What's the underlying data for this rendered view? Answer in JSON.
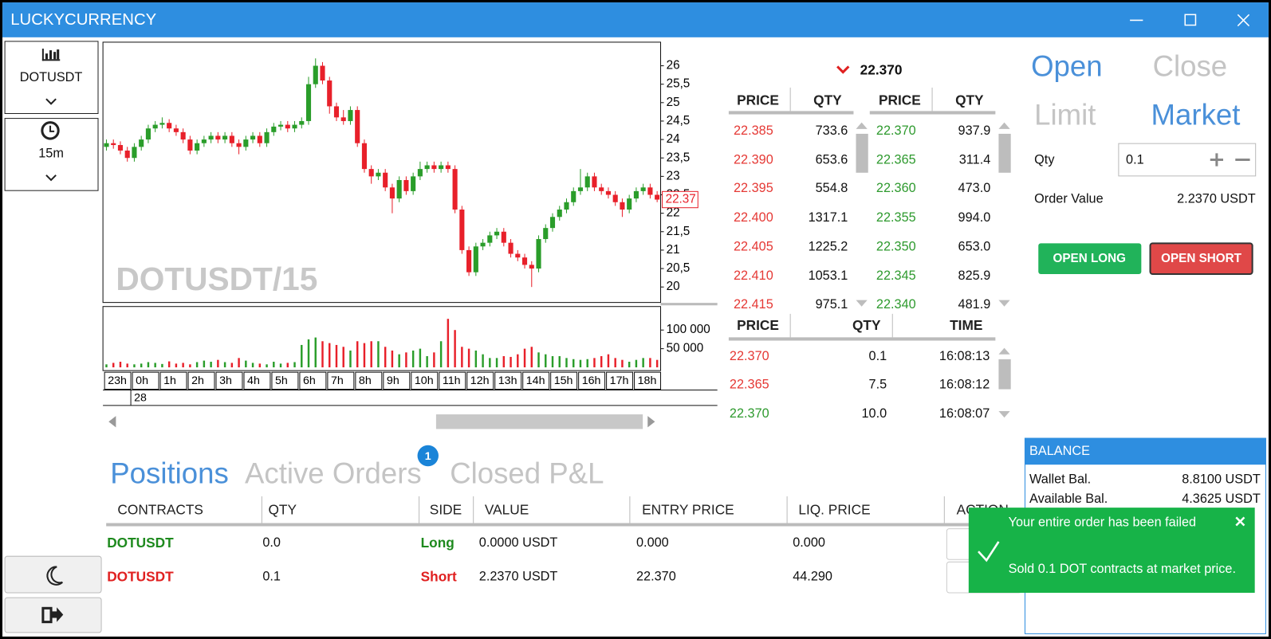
{
  "window": {
    "title": "LUCKYCURRENCY"
  },
  "sidebar": {
    "symbol": "DOTUSDT",
    "interval": "15m"
  },
  "chart_data": {
    "type": "candlestick",
    "watermark": "DOTUSDT/15",
    "x_labels": [
      "23h",
      "0h",
      "1h",
      "2h",
      "3h",
      "4h",
      "5h",
      "6h",
      "7h",
      "8h",
      "9h",
      "10h",
      "11h",
      "12h",
      "13h",
      "14h",
      "15h",
      "16h",
      "17h",
      "18h"
    ],
    "date_label": "28",
    "open": [
      23.8,
      23.9,
      23.85,
      23.7,
      23.5,
      23.8,
      24.0,
      24.3,
      24.4,
      24.45,
      24.3,
      24.2,
      24.0,
      23.7,
      23.9,
      24.0,
      24.1,
      24.0,
      24.1,
      23.9,
      23.8,
      24.0,
      24.1,
      23.9,
      24.2,
      24.35,
      24.4,
      24.3,
      24.4,
      24.5,
      25.5,
      26.0,
      25.6,
      24.9,
      24.6,
      24.5,
      24.8,
      23.9,
      23.2,
      23.0,
      23.1,
      22.7,
      22.4,
      22.9,
      22.6,
      23.0,
      23.2,
      23.3,
      23.2,
      23.3,
      23.2,
      22.1,
      21.0,
      20.4,
      21.1,
      21.2,
      21.4,
      21.5,
      21.2,
      20.9,
      20.8,
      20.6,
      20.5,
      21.3,
      21.6,
      21.9,
      22.1,
      22.3,
      22.6,
      22.7,
      23.0,
      22.7,
      22.6,
      22.5,
      22.3,
      22.1,
      22.4,
      22.6,
      22.7,
      22.5
    ],
    "high": [
      24.0,
      24.0,
      23.95,
      23.8,
      23.9,
      24.1,
      24.4,
      24.5,
      24.6,
      24.55,
      24.4,
      24.3,
      24.1,
      24.0,
      24.1,
      24.2,
      24.2,
      24.2,
      24.2,
      24.0,
      24.1,
      24.2,
      24.2,
      24.3,
      24.45,
      24.5,
      24.5,
      24.5,
      24.6,
      25.7,
      26.2,
      26.1,
      25.7,
      25.0,
      24.8,
      24.9,
      24.9,
      24.0,
      23.3,
      23.2,
      23.2,
      22.8,
      23.0,
      23.0,
      23.1,
      23.4,
      23.4,
      23.4,
      23.4,
      23.4,
      23.3,
      22.2,
      21.1,
      21.2,
      21.3,
      21.5,
      21.6,
      21.6,
      21.3,
      21.0,
      20.9,
      20.7,
      21.4,
      21.7,
      22.0,
      22.2,
      22.4,
      22.7,
      23.2,
      23.1,
      23.1,
      22.8,
      22.7,
      22.6,
      22.4,
      22.5,
      22.7,
      22.8,
      22.8,
      22.6
    ],
    "low": [
      23.7,
      23.75,
      23.6,
      23.4,
      23.4,
      23.7,
      23.9,
      24.2,
      24.3,
      24.2,
      24.1,
      23.9,
      23.6,
      23.6,
      23.8,
      23.9,
      23.9,
      23.9,
      23.8,
      23.6,
      23.7,
      23.9,
      23.8,
      23.8,
      24.1,
      24.25,
      24.2,
      24.2,
      24.3,
      24.4,
      25.4,
      25.5,
      24.7,
      24.5,
      24.4,
      24.4,
      23.8,
      23.1,
      22.8,
      22.9,
      22.6,
      22.0,
      22.3,
      22.5,
      22.5,
      22.9,
      23.1,
      23.1,
      23.1,
      23.1,
      22.0,
      20.9,
      20.3,
      20.3,
      21.0,
      21.1,
      21.3,
      21.1,
      20.8,
      20.7,
      20.5,
      20.0,
      20.4,
      21.2,
      21.5,
      21.8,
      22.0,
      22.2,
      22.5,
      22.6,
      22.6,
      22.5,
      22.4,
      22.2,
      21.9,
      22.0,
      22.3,
      22.5,
      22.4,
      22.3
    ],
    "close": [
      23.9,
      23.85,
      23.7,
      23.5,
      23.8,
      24.0,
      24.3,
      24.4,
      24.45,
      24.3,
      24.2,
      24.0,
      23.7,
      23.9,
      24.0,
      24.1,
      24.0,
      24.1,
      23.9,
      23.8,
      24.0,
      24.1,
      23.9,
      24.2,
      24.35,
      24.4,
      24.3,
      24.4,
      24.5,
      25.5,
      26.0,
      25.6,
      24.9,
      24.6,
      24.5,
      24.8,
      23.9,
      23.2,
      23.0,
      23.1,
      22.7,
      22.4,
      22.9,
      22.6,
      23.0,
      23.2,
      23.3,
      23.2,
      23.3,
      23.2,
      22.1,
      21.0,
      20.4,
      21.1,
      21.2,
      21.4,
      21.5,
      21.2,
      20.9,
      20.8,
      20.6,
      20.5,
      21.3,
      21.6,
      21.9,
      22.1,
      22.3,
      22.6,
      22.7,
      23.0,
      22.7,
      22.6,
      22.5,
      22.3,
      22.1,
      22.4,
      22.6,
      22.7,
      22.5,
      22.37
    ],
    "volume": [
      8000,
      12000,
      15000,
      10000,
      8000,
      10000,
      14000,
      12000,
      9000,
      16000,
      10000,
      12000,
      8000,
      14000,
      18000,
      15000,
      20000,
      14000,
      12000,
      25000,
      18000,
      12000,
      10000,
      8000,
      15000,
      10000,
      12000,
      14000,
      60000,
      75000,
      80000,
      70000,
      65000,
      60000,
      55000,
      45000,
      70000,
      65000,
      70000,
      70000,
      55000,
      45000,
      35000,
      40000,
      45000,
      50000,
      30000,
      40000,
      70000,
      130000,
      100000,
      55000,
      50000,
      45000,
      35000,
      25000,
      25000,
      30000,
      28000,
      35000,
      50000,
      55000,
      40000,
      35000,
      30000,
      30000,
      25000,
      22000,
      20000,
      22000,
      25000,
      30000,
      35000,
      25000,
      20000,
      15000,
      20000,
      25000,
      25000,
      20000
    ],
    "ylim": [
      19.58,
      26.64
    ],
    "yticks": [
      20,
      {
        "value": 20.5,
        "label": "20,5"
      },
      21,
      {
        "value": 21.5,
        "label": "21,5"
      },
      22,
      {
        "value": 22.5,
        "label": "22,5"
      },
      23,
      {
        "value": 23.5,
        "label": "23,5"
      },
      24,
      {
        "value": 24.5,
        "label": "24,5"
      },
      25,
      {
        "value": 25.5,
        "label": "25,5"
      },
      26
    ],
    "volume_ylim": [
      -8700,
      163000
    ],
    "volume_yticks": [
      {
        "value": 50000,
        "label": "50 000"
      },
      {
        "value": 100000,
        "label": "100 000"
      }
    ],
    "last_price": 22.37,
    "up_color": "#2a9d2a",
    "down_color": "#e8202a"
  },
  "order_book": {
    "last_price": "22.370",
    "asks": {
      "headers": [
        "PRICE",
        "QTY"
      ],
      "rows": [
        [
          "22.385",
          "733.6"
        ],
        [
          "22.390",
          "653.6"
        ],
        [
          "22.395",
          "554.8"
        ],
        [
          "22.400",
          "1317.1"
        ],
        [
          "22.405",
          "1225.2"
        ],
        [
          "22.410",
          "1053.1"
        ],
        [
          "22.415",
          "975.1"
        ]
      ]
    },
    "bids": {
      "headers": [
        "PRICE",
        "QTY"
      ],
      "rows": [
        [
          "22.370",
          "937.9"
        ],
        [
          "22.365",
          "311.4"
        ],
        [
          "22.360",
          "473.0"
        ],
        [
          "22.355",
          "994.0"
        ],
        [
          "22.350",
          "653.0"
        ],
        [
          "22.345",
          "825.9"
        ],
        [
          "22.340",
          "481.9"
        ]
      ]
    },
    "trades": {
      "headers": [
        "PRICE",
        "QTY",
        "TIME"
      ],
      "rows": [
        [
          "22.370",
          "0.1",
          "16:08:13"
        ],
        [
          "22.365",
          "7.5",
          "16:08:12"
        ],
        [
          "22.370",
          "10.0",
          "16:08:07"
        ]
      ],
      "row_colors": [
        "#e53935",
        "#e53935",
        "#2e9a2e"
      ]
    }
  },
  "order_panel": {
    "tabs": [
      "Open",
      "Close"
    ],
    "types": [
      "Limit",
      "Market"
    ],
    "qty_label": "Qty",
    "qty": "0.1",
    "order_value_label": "Order Value",
    "order_value": "2.2370 USDT",
    "buttons": [
      "OPEN LONG",
      "OPEN SHORT"
    ]
  },
  "positions": {
    "tabs": [
      "Positions",
      "Active Orders",
      "Closed P&L"
    ],
    "active_orders_badge": "1",
    "headers": [
      "CONTRACTS",
      "QTY",
      "SIDE",
      "VALUE",
      "ENTRY PRICE",
      "LIQ. PRICE",
      "ACTION"
    ],
    "rows": [
      [
        "DOTUSDT",
        "0.0",
        "Long",
        "0.0000 USDT",
        "0.000",
        "0.000"
      ],
      [
        "DOTUSDT",
        "0.1",
        "Short",
        "2.2370 USDT",
        "22.370",
        "44.290"
      ]
    ],
    "row_colors": [
      "#1e8a1e",
      "#e02020"
    ]
  },
  "balance": {
    "title": "BALANCE",
    "rows": [
      [
        "Wallet Bal.",
        "8.8100 USDT"
      ],
      [
        "Available Bal.",
        "4.3625 USDT"
      ]
    ]
  },
  "toast": {
    "title": "Your entire order has been failed",
    "message": "Sold 0.1 DOT contracts at market price."
  }
}
